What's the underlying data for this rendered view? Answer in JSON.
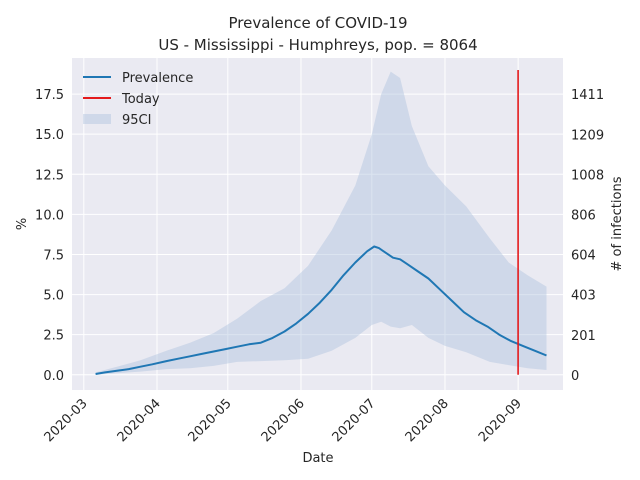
{
  "chart_data": {
    "type": "line",
    "title": "Prevalence of COVID-19",
    "subtitle": "US - Mississippi - Humphreys, pop. = 8064",
    "xlabel": "Date",
    "ylabel": "%",
    "ylabel_right": "# of infections",
    "ylim": [
      -0.95,
      19.75
    ],
    "xlim": [
      "2020-02-25",
      "2020-09-20"
    ],
    "grid": true,
    "legend_position": "top-left",
    "x_tick_labels": [
      "2020-03",
      "2020-04",
      "2020-05",
      "2020-06",
      "2020-07",
      "2020-08",
      "2020-09"
    ],
    "x_ticks": [
      "2020-03-01",
      "2020-04-01",
      "2020-05-01",
      "2020-06-01",
      "2020-07-01",
      "2020-08-01",
      "2020-09-01"
    ],
    "y_ticks": [
      0.0,
      2.5,
      5.0,
      7.5,
      10.0,
      12.5,
      15.0,
      17.5
    ],
    "y_tick_labels": [
      "0.0",
      "2.5",
      "5.0",
      "7.5",
      "10.0",
      "12.5",
      "15.0",
      "17.5"
    ],
    "right_ticks": [
      0,
      201,
      403,
      604,
      806,
      1008,
      1209,
      1411
    ],
    "right_tick_labels": [
      "0",
      "201",
      "403",
      "604",
      "806",
      "1008",
      "1209",
      "1411"
    ],
    "series": [
      {
        "name": "Prevalence",
        "color": "#1f77b4",
        "x": [
          "2020-03-06",
          "2020-03-10",
          "2020-03-15",
          "2020-03-20",
          "2020-03-25",
          "2020-03-30",
          "2020-04-05",
          "2020-04-10",
          "2020-04-15",
          "2020-04-20",
          "2020-04-25",
          "2020-04-30",
          "2020-05-05",
          "2020-05-10",
          "2020-05-15",
          "2020-05-20",
          "2020-05-25",
          "2020-05-30",
          "2020-06-04",
          "2020-06-09",
          "2020-06-14",
          "2020-06-19",
          "2020-06-24",
          "2020-06-29",
          "2020-07-02",
          "2020-07-04",
          "2020-07-07",
          "2020-07-10",
          "2020-07-13",
          "2020-07-16",
          "2020-07-20",
          "2020-07-25",
          "2020-07-30",
          "2020-08-04",
          "2020-08-09",
          "2020-08-14",
          "2020-08-19",
          "2020-08-24",
          "2020-08-29",
          "2020-09-03",
          "2020-09-08",
          "2020-09-13"
        ],
        "values": [
          0.05,
          0.15,
          0.25,
          0.35,
          0.5,
          0.65,
          0.85,
          1.0,
          1.15,
          1.3,
          1.45,
          1.6,
          1.75,
          1.9,
          2.0,
          2.3,
          2.7,
          3.2,
          3.8,
          4.5,
          5.3,
          6.2,
          7.0,
          7.7,
          8.0,
          7.9,
          7.6,
          7.3,
          7.2,
          6.9,
          6.5,
          6.0,
          5.3,
          4.6,
          3.9,
          3.4,
          3.0,
          2.5,
          2.1,
          1.8,
          1.5,
          1.2
        ]
      },
      {
        "name": "Today",
        "color": "#e41a1c",
        "x": [
          "2020-09-01",
          "2020-09-01"
        ],
        "values": [
          0.0,
          19.0
        ]
      }
    ],
    "band": {
      "name": "95CI",
      "color": "#b0c4de",
      "x": [
        "2020-03-06",
        "2020-03-15",
        "2020-03-25",
        "2020-04-05",
        "2020-04-15",
        "2020-04-25",
        "2020-05-05",
        "2020-05-15",
        "2020-05-25",
        "2020-06-04",
        "2020-06-14",
        "2020-06-24",
        "2020-07-01",
        "2020-07-05",
        "2020-07-09",
        "2020-07-13",
        "2020-07-18",
        "2020-07-25",
        "2020-08-01",
        "2020-08-10",
        "2020-08-20",
        "2020-08-28",
        "2020-09-05",
        "2020-09-13"
      ],
      "lower": [
        0.0,
        0.1,
        0.2,
        0.35,
        0.4,
        0.55,
        0.8,
        0.85,
        0.9,
        1.0,
        1.5,
        2.3,
        3.1,
        3.3,
        3.0,
        2.9,
        3.1,
        2.3,
        1.8,
        1.4,
        0.8,
        0.6,
        0.4,
        0.3
      ],
      "upper": [
        0.15,
        0.5,
        0.9,
        1.5,
        2.0,
        2.6,
        3.5,
        4.6,
        5.4,
        6.8,
        9.0,
        11.8,
        15.0,
        17.5,
        18.9,
        18.5,
        15.5,
        13.0,
        11.8,
        10.5,
        8.5,
        7.0,
        6.2,
        5.5
      ]
    }
  }
}
